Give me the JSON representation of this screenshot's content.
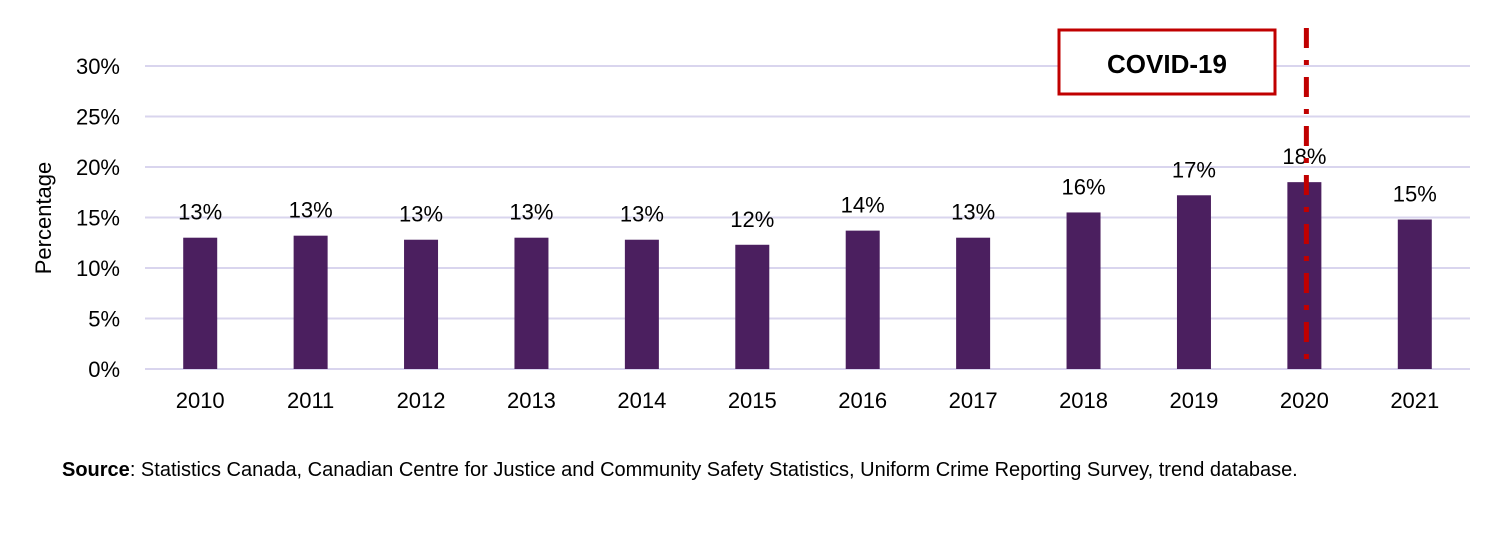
{
  "chart_data": {
    "type": "bar",
    "title": "",
    "xlabel": "",
    "ylabel": "Percentage",
    "ylim": [
      0,
      30
    ],
    "yticks": [
      "0%",
      "5%",
      "10%",
      "15%",
      "20%",
      "25%",
      "30%"
    ],
    "grid": true,
    "categories": [
      "2010",
      "2011",
      "2012",
      "2013",
      "2014",
      "2015",
      "2016",
      "2017",
      "2018",
      "2019",
      "2020",
      "2021"
    ],
    "values": [
      13.0,
      13.2,
      12.8,
      13.0,
      12.8,
      12.3,
      13.7,
      13.0,
      15.5,
      17.2,
      18.5,
      14.8
    ],
    "data_labels": [
      "13%",
      "13%",
      "13%",
      "13%",
      "13%",
      "12%",
      "14%",
      "13%",
      "16%",
      "17%",
      "18%",
      "15%"
    ],
    "bar_color": "#4b1f5f",
    "gridline_color": "#d9d5ee",
    "annotation": {
      "text": "COVID-19",
      "at_category": "2020",
      "color": "#c00000",
      "line_style": "dash-dot"
    }
  },
  "source": {
    "label": "Source",
    "text": ": Statistics Canada, Canadian Centre for Justice and Community Safety Statistics, Uniform Crime Reporting Survey, trend database."
  }
}
